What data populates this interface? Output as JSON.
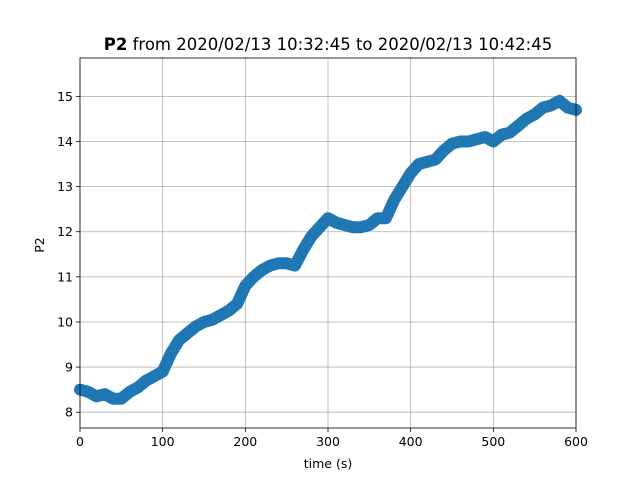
{
  "chart_data": {
    "type": "line",
    "title": {
      "series_name": "P2",
      "text": " from 2020/02/13 10:32:45 to 2020/02/13 10:42:45"
    },
    "xlabel": "time (s)",
    "ylabel": "P2",
    "xlim": [
      0,
      600
    ],
    "ylim": [
      7.65,
      15.85
    ],
    "xticks": [
      0,
      100,
      200,
      300,
      400,
      500,
      600
    ],
    "yticks": [
      8,
      9,
      10,
      11,
      12,
      13,
      14,
      15
    ],
    "grid": true,
    "series": [
      {
        "color": "#1f77b4",
        "x": [
          0,
          10,
          20,
          30,
          40,
          50,
          60,
          70,
          80,
          90,
          100,
          110,
          120,
          130,
          140,
          150,
          160,
          170,
          180,
          190,
          200,
          210,
          220,
          230,
          240,
          250,
          260,
          270,
          280,
          290,
          300,
          310,
          320,
          330,
          340,
          350,
          360,
          370,
          380,
          390,
          400,
          410,
          420,
          430,
          440,
          450,
          460,
          470,
          480,
          490,
          500,
          510,
          520,
          530,
          540,
          550,
          560,
          570,
          580,
          590,
          600
        ],
        "y": [
          8.5,
          8.45,
          8.35,
          8.4,
          8.3,
          8.3,
          8.45,
          8.55,
          8.7,
          8.8,
          8.9,
          9.3,
          9.6,
          9.75,
          9.9,
          10.0,
          10.05,
          10.15,
          10.25,
          10.4,
          10.8,
          11.0,
          11.15,
          11.25,
          11.3,
          11.3,
          11.25,
          11.6,
          11.9,
          12.1,
          12.3,
          12.2,
          12.15,
          12.1,
          12.1,
          12.15,
          12.3,
          12.3,
          12.7,
          13.0,
          13.3,
          13.5,
          13.55,
          13.6,
          13.8,
          13.95,
          14.0,
          14.0,
          14.05,
          14.1,
          14.0,
          14.15,
          14.2,
          14.35,
          14.5,
          14.6,
          14.75,
          14.8,
          14.9,
          14.75,
          14.7
        ]
      }
    ]
  }
}
